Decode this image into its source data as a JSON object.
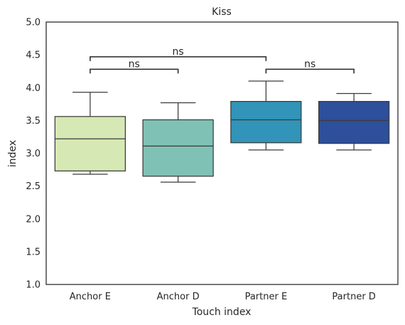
{
  "chart_data": {
    "type": "box",
    "title": "Kiss",
    "xlabel": "Touch index",
    "ylabel": "index",
    "ylim": [
      1.0,
      5.0
    ],
    "yticks": [
      "1.0",
      "1.5",
      "2.0",
      "2.5",
      "3.0",
      "3.5",
      "4.0",
      "4.5",
      "5.0"
    ],
    "grid": false,
    "categories": [
      "Anchor E",
      "Anchor D",
      "Partner E",
      "Partner D"
    ],
    "boxes": [
      {
        "category": "Anchor E",
        "whisker_low": 2.68,
        "q1": 2.73,
        "median": 3.22,
        "q3": 3.56,
        "whisker_high": 3.93,
        "color": "#d6e8b3"
      },
      {
        "category": "Anchor D",
        "whisker_low": 2.56,
        "q1": 2.65,
        "median": 3.11,
        "q3": 3.51,
        "whisker_high": 3.77,
        "color": "#7fc1b5"
      },
      {
        "category": "Partner E",
        "whisker_low": 3.05,
        "q1": 3.16,
        "median": 3.51,
        "q3": 3.79,
        "whisker_high": 4.1,
        "color": "#3194b8"
      },
      {
        "category": "Partner D",
        "whisker_low": 3.05,
        "q1": 3.15,
        "median": 3.5,
        "q3": 3.79,
        "whisker_high": 3.91,
        "color": "#2d4f9c"
      }
    ],
    "significance": [
      {
        "from": "Anchor E",
        "to": "Anchor D",
        "level": 4.28,
        "label": "ns"
      },
      {
        "from": "Partner E",
        "to": "Partner D",
        "level": 4.28,
        "label": "ns"
      },
      {
        "from": "Anchor E",
        "to": "Partner E",
        "level": 4.47,
        "label": "ns"
      }
    ]
  }
}
